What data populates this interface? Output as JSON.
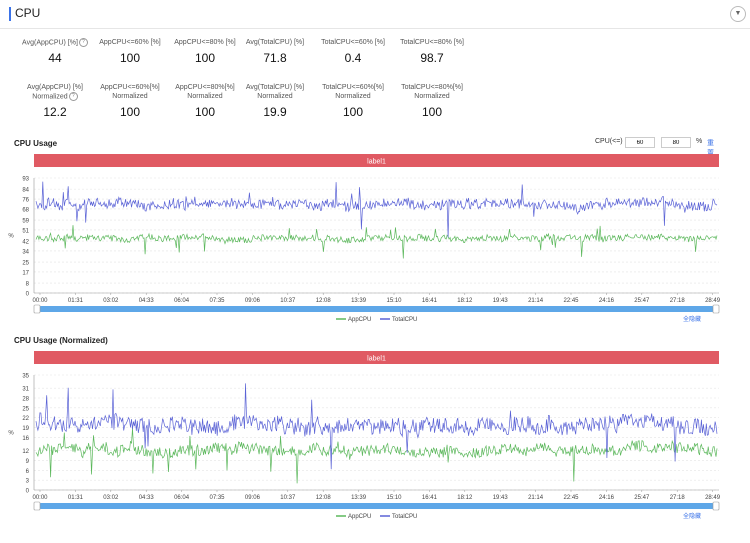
{
  "header": {
    "title": "CPU",
    "collapse_icon": "chevron-down-icon"
  },
  "stats_row1": [
    {
      "label_lines": [
        "Avg(AppCPU) [%]"
      ],
      "value": "44",
      "help": true
    },
    {
      "label_lines": [
        "AppCPU<=60% [%]"
      ],
      "value": "100"
    },
    {
      "label_lines": [
        "AppCPU<=80% [%]"
      ],
      "value": "100"
    },
    {
      "label_lines": [
        "Avg(TotalCPU) [%]"
      ],
      "value": "71.8"
    },
    {
      "label_lines": [
        "TotalCPU<=60% [%]"
      ],
      "value": "0.4"
    },
    {
      "label_lines": [
        "TotalCPU<=80% [%]"
      ],
      "value": "98.7"
    }
  ],
  "stats_row2": [
    {
      "label_lines": [
        "Avg(AppCPU) [%]",
        "Normalized"
      ],
      "value": "12.2",
      "help": true
    },
    {
      "label_lines": [
        "AppCPU<=60%[%]",
        "Normalized"
      ],
      "value": "100"
    },
    {
      "label_lines": [
        "AppCPU<=80%[%]",
        "Normalized"
      ],
      "value": "100"
    },
    {
      "label_lines": [
        "Avg(TotalCPU) [%]",
        "Normalized"
      ],
      "value": "19.9"
    },
    {
      "label_lines": [
        "TotalCPU<=60%[%]",
        "Normalized"
      ],
      "value": "100"
    },
    {
      "label_lines": [
        "TotalCPU<=80%[%]",
        "Normalized"
      ],
      "value": "100"
    }
  ],
  "controls": {
    "label": "CPU(<=)",
    "threshold1": "60",
    "threshold2": "80",
    "unit": "%",
    "reset": "重置"
  },
  "colors": {
    "app": "#5cb85c",
    "total": "#5b63d6",
    "label_band": "#e05a63",
    "slider": "#5ea7e8"
  },
  "chart_data": [
    {
      "type": "line",
      "title": "CPU Usage",
      "band_label": "label1",
      "ylabel": "%",
      "y_ticks": [
        0,
        8,
        17,
        25,
        34,
        42,
        51,
        59,
        68,
        76,
        84,
        93
      ],
      "ylim": [
        0,
        93
      ],
      "x_ticks": [
        "00:00",
        "01:31",
        "03:02",
        "04:33",
        "06:04",
        "07:35",
        "09:06",
        "10:37",
        "12:08",
        "13:39",
        "15:10",
        "16:41",
        "18:12",
        "19:43",
        "21:14",
        "22:45",
        "24:16",
        "25:47",
        "27:18",
        "28:49"
      ],
      "series": [
        {
          "name": "AppCPU",
          "mean": 44,
          "spread": 3
        },
        {
          "name": "TotalCPU",
          "mean": 71.8,
          "spread": 5
        }
      ],
      "legend": [
        "AppCPU",
        "TotalCPU"
      ],
      "hide_all": "全隐藏"
    },
    {
      "type": "line",
      "title": "CPU Usage (Normalized)",
      "band_label": "label1",
      "ylabel": "%",
      "y_ticks": [
        0,
        3,
        6,
        9,
        12,
        16,
        19,
        22,
        25,
        28,
        31,
        35
      ],
      "ylim": [
        0,
        35
      ],
      "x_ticks": [
        "00:00",
        "01:31",
        "03:02",
        "04:33",
        "06:04",
        "07:35",
        "09:06",
        "10:37",
        "12:08",
        "13:39",
        "15:10",
        "16:41",
        "18:12",
        "19:43",
        "21:14",
        "22:45",
        "24:16",
        "25:47",
        "27:18",
        "28:49"
      ],
      "series": [
        {
          "name": "AppCPU",
          "mean": 12.2,
          "spread": 2
        },
        {
          "name": "TotalCPU",
          "mean": 19.9,
          "spread": 3
        }
      ],
      "legend": [
        "AppCPU",
        "TotalCPU"
      ],
      "hide_all": "全隐藏"
    }
  ]
}
